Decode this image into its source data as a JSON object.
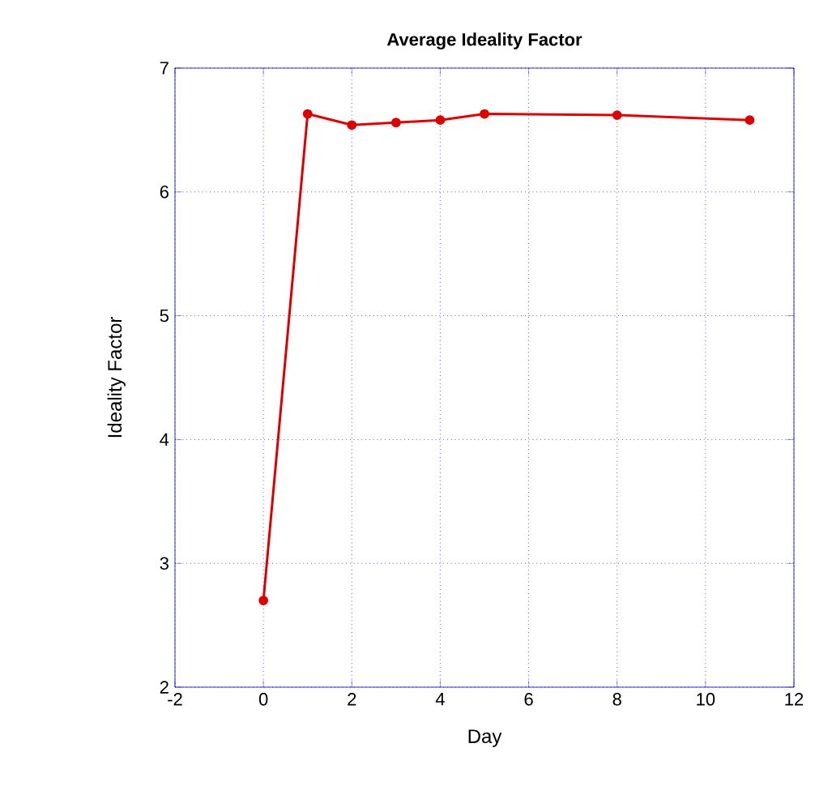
{
  "chart_data": {
    "type": "line",
    "title": "Average Ideality Factor",
    "xlabel": "Day",
    "ylabel": "Ideality Factor",
    "x": [
      0,
      1,
      2,
      3,
      4,
      5,
      8,
      11
    ],
    "series": [
      {
        "color": "#dd0000",
        "values": [
          2.7,
          6.63,
          6.54,
          6.56,
          6.58,
          6.63,
          6.62,
          6.58
        ]
      }
    ],
    "xlim": [
      -2,
      12
    ],
    "xticks": [
      -2,
      0,
      2,
      4,
      6,
      8,
      10,
      12
    ],
    "ylim": [
      2,
      7
    ],
    "yticks": [
      2,
      3,
      4,
      5,
      6,
      7
    ],
    "grid": true,
    "marker": "circle",
    "line_style": "solid"
  }
}
